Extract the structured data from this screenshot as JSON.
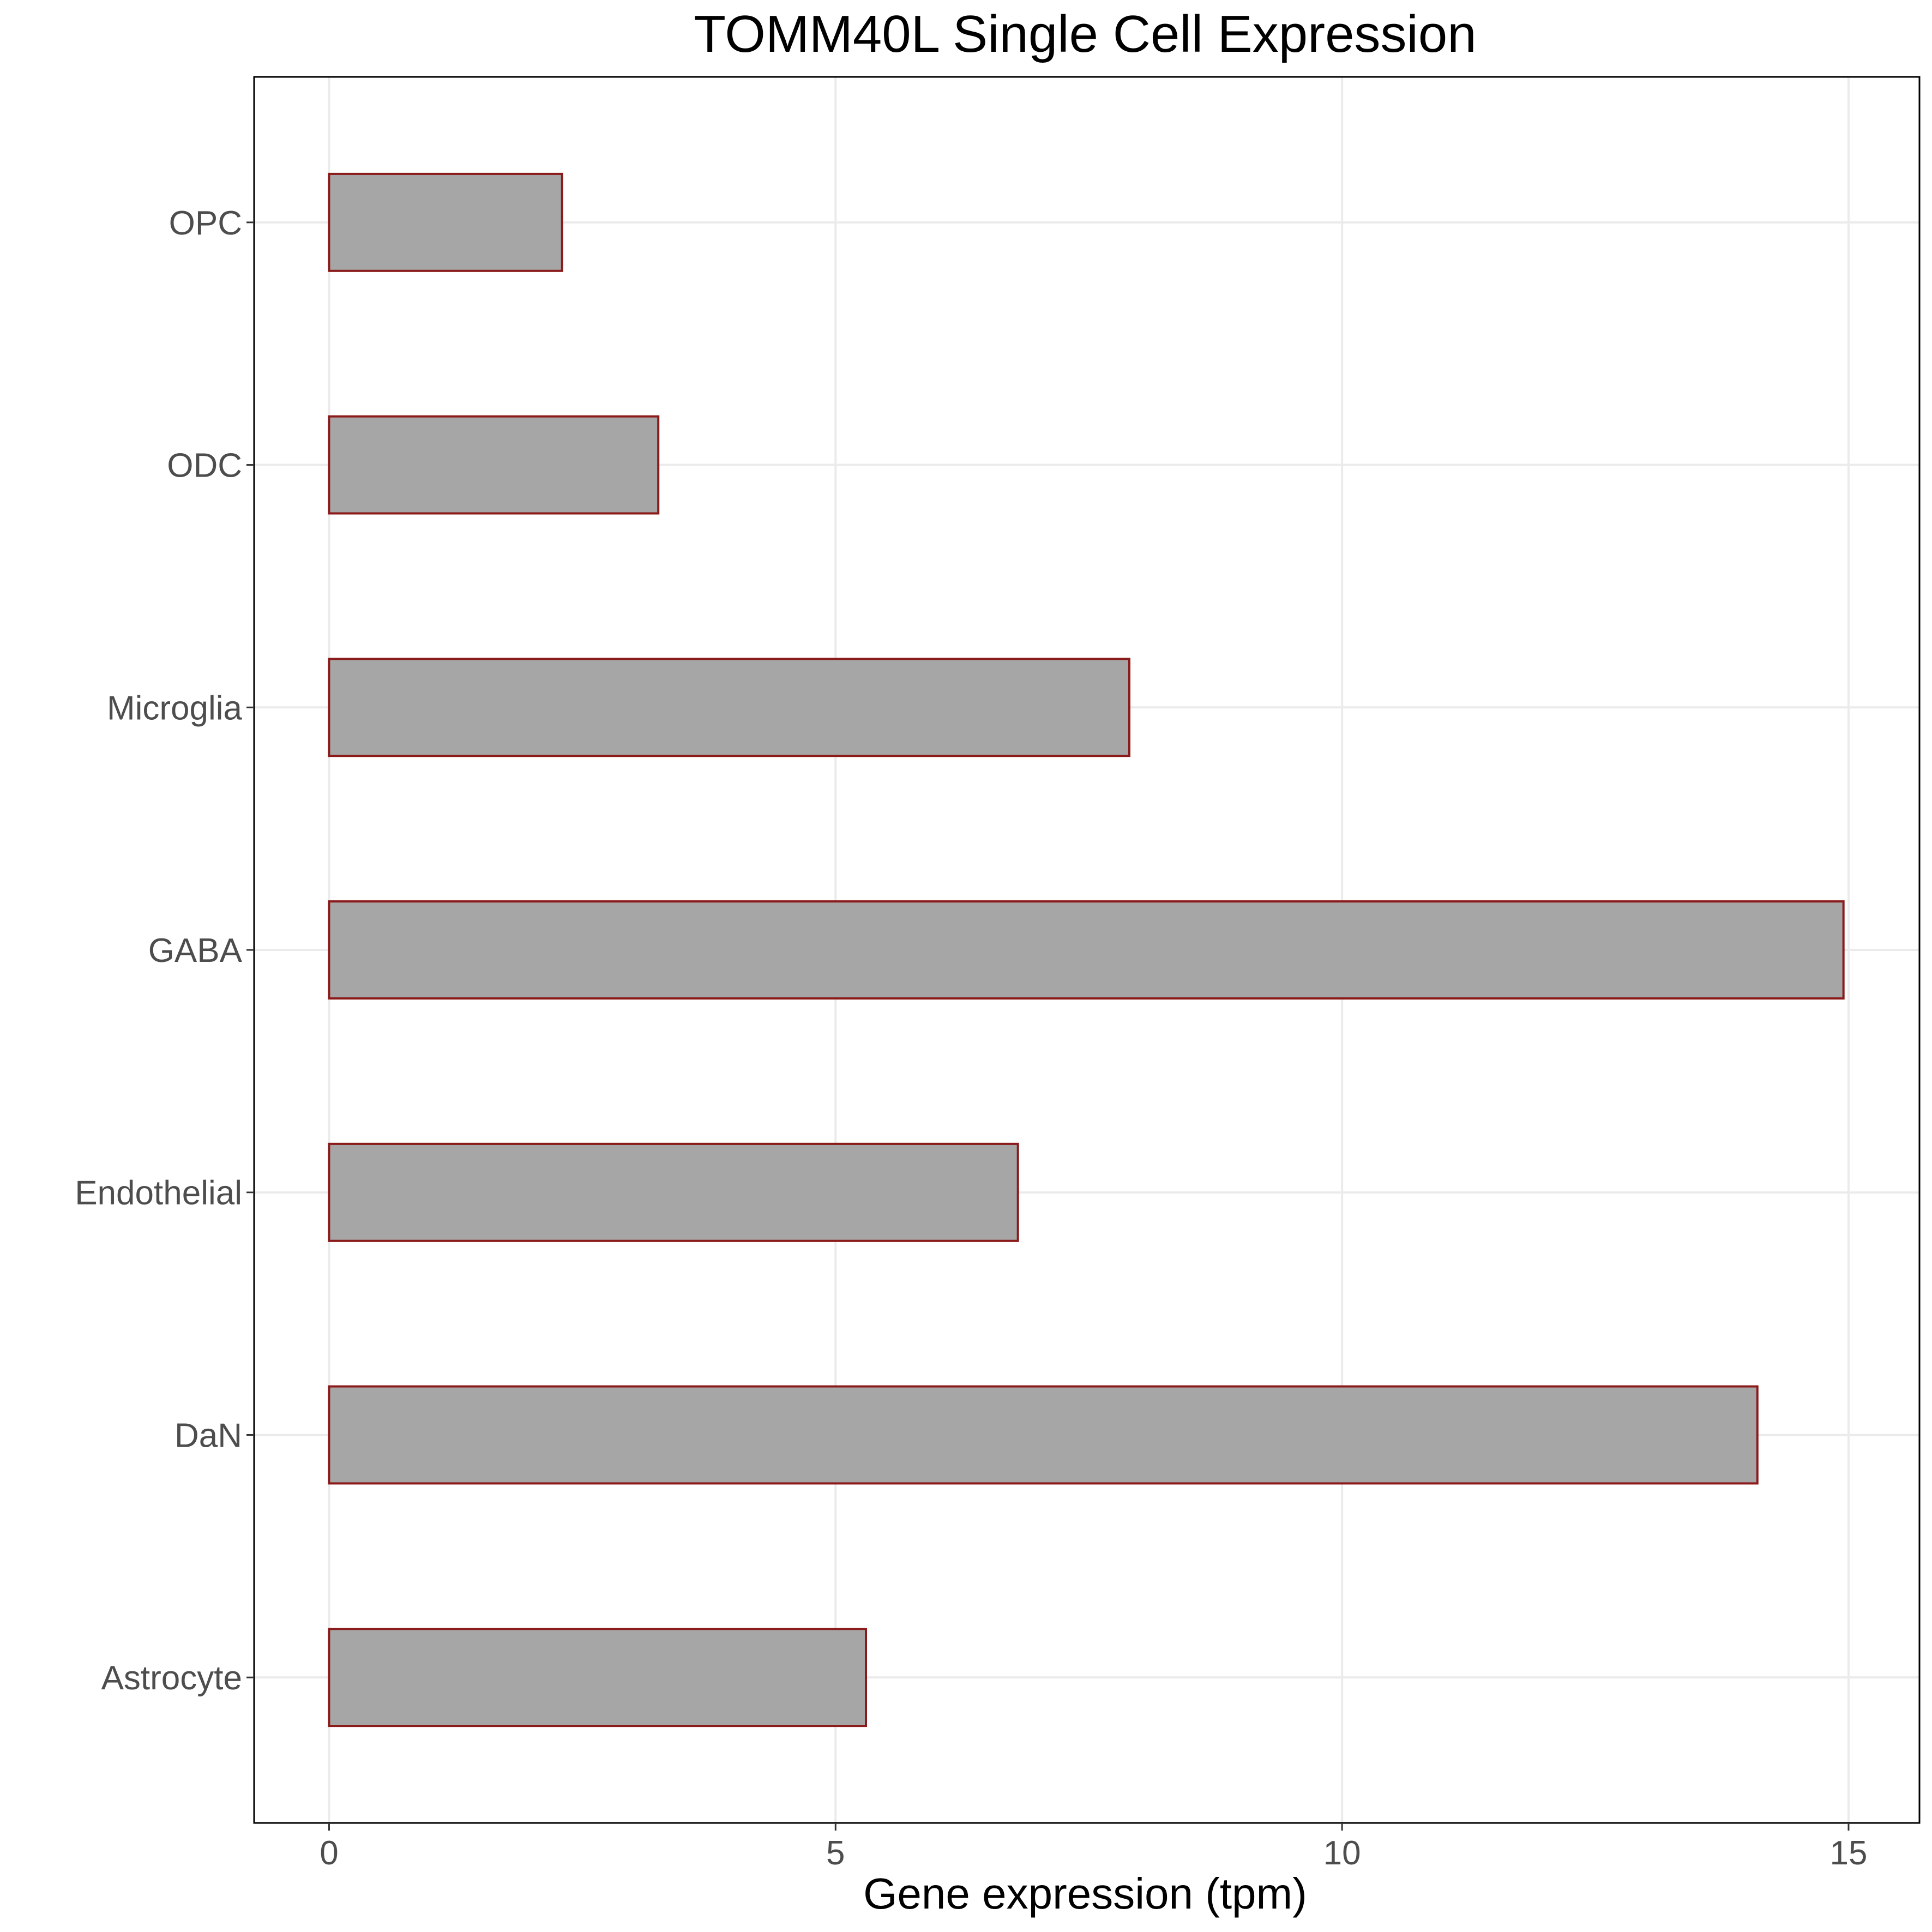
{
  "chart_data": {
    "type": "bar",
    "orientation": "horizontal",
    "title": "TOMM40L Single Cell Expression",
    "xlabel": "Gene expression (tpm)",
    "ylabel": "",
    "categories": [
      "Astrocyte",
      "DaN",
      "Endothelial",
      "GABA",
      "Microglia",
      "ODC",
      "OPC"
    ],
    "values": [
      5.3,
      14.1,
      6.8,
      14.95,
      7.9,
      3.25,
      2.3
    ],
    "xlim": [
      -0.74,
      15.7
    ],
    "xticks": [
      0,
      5,
      10,
      15
    ],
    "grid": true,
    "legend": "none",
    "colors": {
      "bar_fill": "#a6a6a6",
      "bar_stroke": "#8b1a1a",
      "grid": "#ebebeb",
      "panel_border": "#000000"
    }
  }
}
